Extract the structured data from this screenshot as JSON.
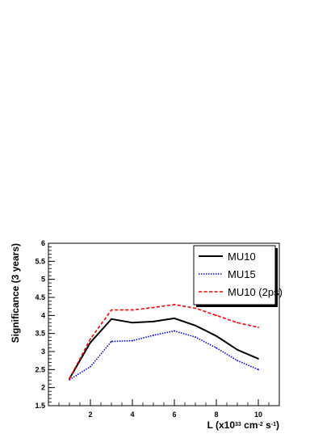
{
  "chart_data": {
    "type": "line",
    "title": "",
    "xlabel": "L (x10³³ cm⁻² s⁻¹)",
    "xlabel_parts": [
      "L (x10",
      "33",
      " cm",
      "-2",
      " s",
      "-1",
      ")"
    ],
    "ylabel": "Significance (3 years)",
    "xlim": [
      0,
      11
    ],
    "ylim": [
      1.5,
      6
    ],
    "xticks": [
      2,
      4,
      6,
      8,
      10
    ],
    "yticks": [
      1.5,
      2,
      2.5,
      3,
      3.5,
      4,
      4.5,
      5,
      5.5,
      6
    ],
    "grid": false,
    "legend_position": "top-right",
    "series": [
      {
        "name": "MU10",
        "color": "#000000",
        "style": "solid",
        "x": [
          1,
          2,
          3,
          4,
          5,
          6,
          7,
          8,
          9,
          10
        ],
        "y": [
          2.25,
          3.25,
          3.9,
          3.8,
          3.83,
          3.92,
          3.72,
          3.43,
          3.05,
          2.8
        ]
      },
      {
        "name": "MU15",
        "color": "#0000ff",
        "style": "dotted",
        "x": [
          1,
          2,
          3,
          4,
          5,
          6,
          7,
          8,
          9,
          10
        ],
        "y": [
          2.22,
          2.58,
          3.28,
          3.3,
          3.45,
          3.57,
          3.4,
          3.1,
          2.75,
          2.5
        ]
      },
      {
        "name": "MU10 (2ps)",
        "color": "#ff0000",
        "style": "dashed",
        "x": [
          1,
          2,
          3,
          4,
          5,
          6,
          7,
          8,
          9,
          10
        ],
        "y": [
          2.25,
          3.35,
          4.15,
          4.15,
          4.22,
          4.3,
          4.2,
          4.0,
          3.8,
          3.67
        ]
      }
    ]
  }
}
